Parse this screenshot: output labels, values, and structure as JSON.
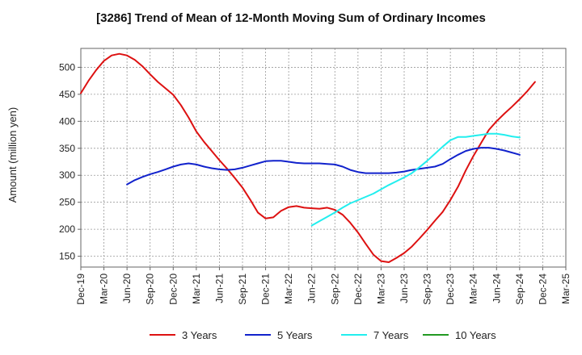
{
  "chart_data": {
    "type": "line",
    "title": "[3286]  Trend of Mean of 12-Month Moving Sum of Ordinary Incomes",
    "xlabel": "",
    "ylabel": "Amount (million yen)",
    "ylim": [
      130,
      535
    ],
    "yticks": [
      150,
      200,
      250,
      300,
      350,
      400,
      450,
      500
    ],
    "grid": true,
    "legend_position": "bottom",
    "x_tick_labels": [
      "Dec-19",
      "Mar-20",
      "Jun-20",
      "Sep-20",
      "Dec-20",
      "Mar-21",
      "Jun-21",
      "Sep-21",
      "Dec-21",
      "Mar-22",
      "Jun-22",
      "Sep-22",
      "Dec-22",
      "Mar-23",
      "Jun-23",
      "Sep-23",
      "Dec-23",
      "Mar-24",
      "Jun-24",
      "Sep-24",
      "Dec-24",
      "Mar-25"
    ],
    "series": [
      {
        "name": "3 Years",
        "color": "#dd1111",
        "start_index": 0,
        "values": [
          452,
          475,
          495,
          512,
          522,
          525,
          522,
          514,
          502,
          487,
          473,
          461,
          449,
          430,
          407,
          381,
          362,
          345,
          328,
          312,
          295,
          277,
          255,
          231,
          220,
          222,
          234,
          241,
          243,
          240,
          239,
          238,
          240,
          236,
          227,
          212,
          194,
          173,
          153,
          141,
          139,
          147,
          156,
          168,
          183,
          199,
          216,
          232,
          254,
          279,
          309,
          336,
          360,
          384,
          400,
          414,
          427,
          441,
          456,
          473
        ],
        "tooltip": "3 Years"
      },
      {
        "name": "5 Years",
        "color": "#1122cc",
        "start_index": 6,
        "values": [
          283,
          291,
          297,
          302,
          306,
          311,
          316,
          320,
          322,
          320,
          316,
          313,
          311,
          310,
          311,
          314,
          318,
          322,
          326,
          327,
          327,
          325,
          323,
          322,
          322,
          322,
          321,
          320,
          316,
          310,
          306,
          304,
          304,
          304,
          304,
          305,
          307,
          310,
          312,
          314,
          316,
          321,
          330,
          338,
          345,
          349,
          351,
          351,
          349,
          346,
          342,
          338
        ]
      },
      {
        "name": "7 Years",
        "color": "#22eeee",
        "start_index": 30,
        "values": [
          207,
          215,
          223,
          231,
          240,
          248,
          254,
          260,
          266,
          274,
          282,
          289,
          296,
          304,
          315,
          327,
          340,
          353,
          365,
          371,
          371,
          373,
          375,
          377,
          377,
          375,
          372,
          370
        ]
      },
      {
        "name": "10 Years",
        "color": "#229922",
        "start_index": 0,
        "values": []
      }
    ]
  }
}
